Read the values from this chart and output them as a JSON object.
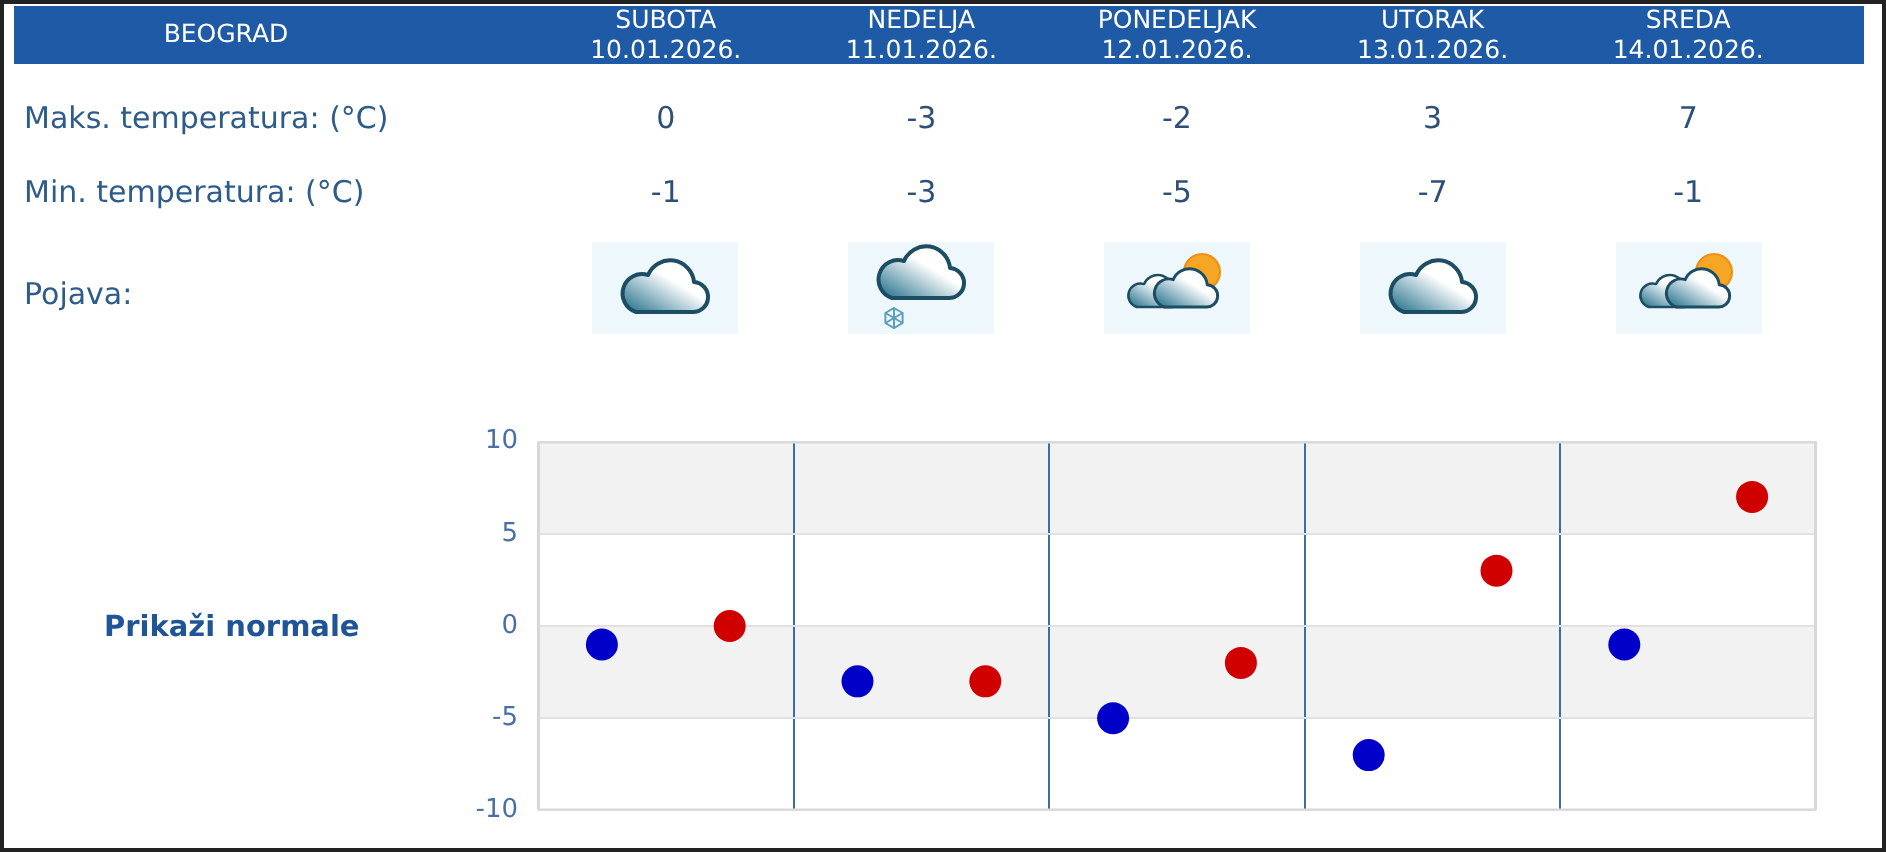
{
  "chart_data": {
    "type": "scatter",
    "title": "BEOGRAD",
    "categories": [
      null,
      null,
      null,
      null,
      null
    ],
    "series": [
      {
        "color": "#d10000",
        "values": [
          0,
          -3,
          -2,
          3,
          7
        ]
      },
      {
        "color": "#0000c8",
        "values": [
          -1,
          -3,
          -5,
          -7,
          -1
        ]
      }
    ],
    "ylim": [
      -10,
      10
    ],
    "yticks": [
      -10,
      -5,
      0,
      5,
      10
    ],
    "grid": true,
    "bands": [
      {
        "axis": "y",
        "from": 5,
        "to": 10,
        "color": "#f2f2f2"
      },
      {
        "axis": "y",
        "from": -5,
        "to": 0,
        "color": "#f2f2f2"
      }
    ],
    "marker": "circle",
    "data_labels": true,
    "annotations": [
      "SUBOTA\n10.01.2026.",
      "NEDELJA\n11.01.2026.",
      "PONEDELJAK\n12.01.2026.",
      "UTORAK\n13.01.2026.",
      "SREDA\n14.01.2026.",
      "Maks. temperatura: (°C)",
      "Min. temperatura: (°C)",
      "Pojava:",
      "Prikaži normale"
    ]
  }
}
